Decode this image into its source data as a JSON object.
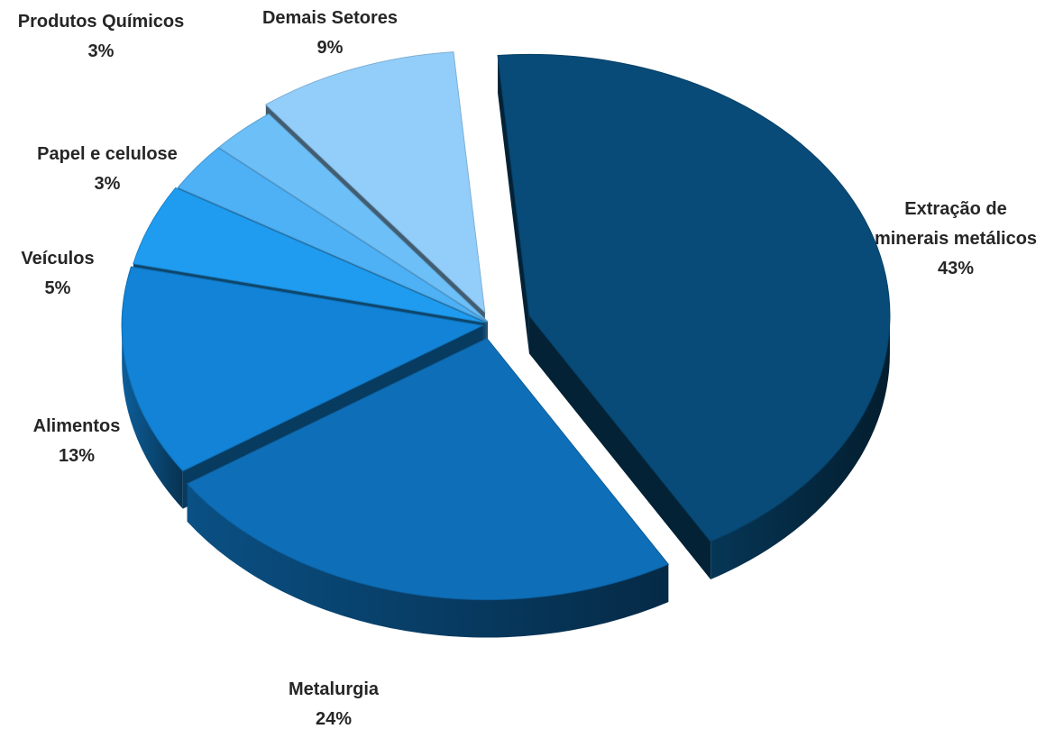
{
  "chart_data": {
    "type": "pie",
    "title": "",
    "slices": [
      {
        "name": "Extração de minerais metálicos",
        "label_lines": [
          "Extração de",
          "minerais metálicos"
        ],
        "value": 43,
        "value_label": "43%",
        "color": "#084b78"
      },
      {
        "name": "Metalurgia",
        "label_lines": [
          "Metalurgia"
        ],
        "value": 24,
        "value_label": "24%",
        "color": "#0e6fb8"
      },
      {
        "name": "Alimentos",
        "label_lines": [
          "Alimentos"
        ],
        "value": 13,
        "value_label": "13%",
        "color": "#1283d6"
      },
      {
        "name": "Veículos",
        "label_lines": [
          "Veículos"
        ],
        "value": 5,
        "value_label": "5%",
        "color": "#1f9cf0"
      },
      {
        "name": "Papel e celulose",
        "label_lines": [
          "Papel e celulose"
        ],
        "value": 3,
        "value_label": "3%",
        "color": "#4eb0f5"
      },
      {
        "name": "Produtos Químicos",
        "label_lines": [
          "Produtos Químicos"
        ],
        "value": 3,
        "value_label": "3%",
        "color": "#6dbff7"
      },
      {
        "name": "Demais Setores",
        "label_lines": [
          "Demais Setores"
        ],
        "value": 9,
        "value_label": "9%",
        "color": "#93cefa"
      }
    ]
  }
}
